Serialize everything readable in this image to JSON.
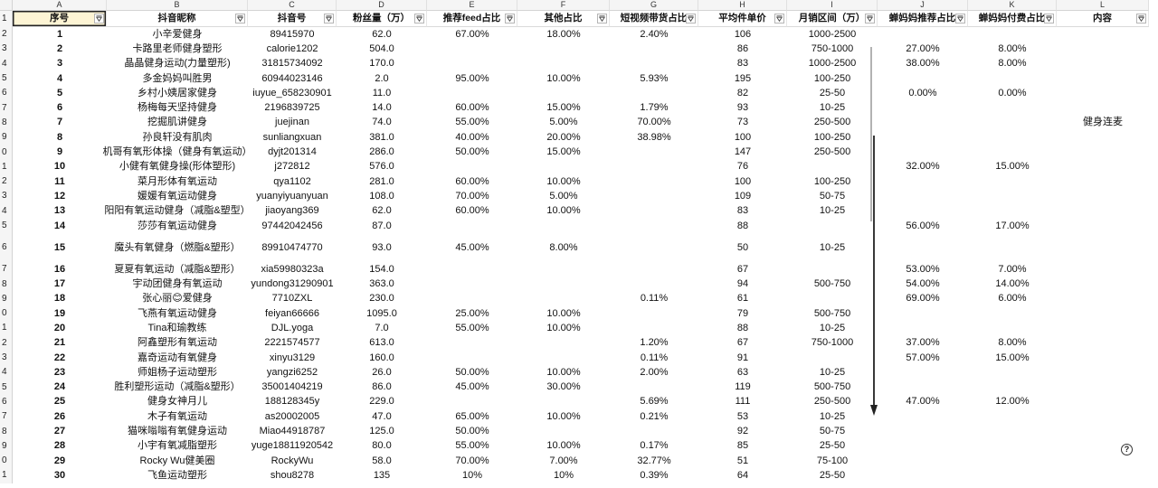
{
  "sheet": {
    "column_letters": [
      "A",
      "B",
      "C",
      "D",
      "E",
      "F",
      "G",
      "H",
      "I",
      "J",
      "K",
      "L"
    ],
    "row_numbers": [
      "1",
      "2",
      "3",
      "4",
      "5",
      "6",
      "7",
      "8",
      "9",
      "0",
      "1",
      "2",
      "3",
      "4",
      "5",
      "6",
      "7",
      "8",
      "9",
      "0",
      "1",
      "2",
      "3",
      "4",
      "5",
      "6",
      "7",
      "8",
      "9",
      "0",
      "1"
    ],
    "headers": [
      "序号",
      "抖音昵称",
      "抖音号",
      "粉丝量（万）",
      "推荐feed占比",
      "其他占比",
      "短视频带货占比",
      "平均件单价",
      "月销区间（万）",
      "蝉妈妈推荐占比",
      "蝉妈妈付费占比",
      "内容"
    ],
    "rows": [
      [
        "1",
        "小辛爱健身",
        "89415970",
        "62.0",
        "67.00%",
        "18.00%",
        "2.40%",
        "106",
        "1000-2500",
        "",
        "",
        ""
      ],
      [
        "2",
        "卡路里老师健身塑形",
        "calorie1202",
        "504.0",
        "",
        "",
        "",
        "86",
        "750-1000",
        "27.00%",
        "8.00%",
        ""
      ],
      [
        "3",
        "晶晶健身运动(力量塑形)",
        "31815734092",
        "170.0",
        "",
        "",
        "",
        "83",
        "1000-2500",
        "38.00%",
        "8.00%",
        ""
      ],
      [
        "4",
        "多金妈妈叫胜男",
        "60944023146",
        "2.0",
        "95.00%",
        "10.00%",
        "5.93%",
        "195",
        "100-250",
        "",
        "",
        ""
      ],
      [
        "5",
        "乡村小姨居家健身",
        "iuyue_658230901",
        "11.0",
        "",
        "",
        "",
        "82",
        "25-50",
        "0.00%",
        "0.00%",
        ""
      ],
      [
        "6",
        "杨梅每天坚持健身",
        "2196839725",
        "14.0",
        "60.00%",
        "15.00%",
        "1.79%",
        "93",
        "10-25",
        "",
        "",
        ""
      ],
      [
        "7",
        "挖掘肌讲健身",
        "juejinan",
        "74.0",
        "55.00%",
        "5.00%",
        "70.00%",
        "73",
        "250-500",
        "",
        "",
        "健身连麦"
      ],
      [
        "8",
        "孙良轩没有肌肉",
        "sunliangxuan",
        "381.0",
        "40.00%",
        "20.00%",
        "38.98%",
        "100",
        "100-250",
        "",
        "",
        ""
      ],
      [
        "9",
        "机哥有氧形体操（健身有氧运动）",
        "dyjt201314",
        "286.0",
        "50.00%",
        "15.00%",
        "",
        "147",
        "250-500",
        "",
        "",
        ""
      ],
      [
        "10",
        "小健有氧健身操(形体塑形)",
        "j272812",
        "576.0",
        "",
        "",
        "",
        "76",
        "",
        "32.00%",
        "15.00%",
        ""
      ],
      [
        "11",
        "菜月形体有氧运动",
        "qya1102",
        "281.0",
        "60.00%",
        "10.00%",
        "",
        "100",
        "100-250",
        "",
        "",
        ""
      ],
      [
        "12",
        "媛媛有氧运动健身",
        "yuanyiyuanyuan",
        "108.0",
        "70.00%",
        "5.00%",
        "",
        "109",
        "50-75",
        "",
        "",
        ""
      ],
      [
        "13",
        "阳阳有氧运动健身（减脂&塑型）",
        "jiaoyang369",
        "62.0",
        "60.00%",
        "10.00%",
        "",
        "83",
        "10-25",
        "",
        "",
        ""
      ],
      [
        "14",
        "莎莎有氧运动健身",
        "97442042456",
        "87.0",
        "",
        "",
        "",
        "88",
        "",
        "56.00%",
        "17.00%",
        ""
      ],
      [
        "15",
        "魔头有氧健身（燃脂&塑形）",
        "89910474770",
        "93.0",
        "45.00%",
        "8.00%",
        "",
        "50",
        "10-25",
        "",
        "",
        ""
      ],
      [
        "16",
        "夏夏有氧运动（减脂&塑形）",
        "xia59980323a",
        "154.0",
        "",
        "",
        "",
        "67",
        "",
        "53.00%",
        "7.00%",
        ""
      ],
      [
        "17",
        "宇动团健身有氧运动",
        "yundong31290901",
        "363.0",
        "",
        "",
        "",
        "94",
        "500-750",
        "54.00%",
        "14.00%",
        ""
      ],
      [
        "18",
        "张心丽😊爱健身",
        "7710ZXL",
        "230.0",
        "",
        "",
        "0.11%",
        "61",
        "",
        "69.00%",
        "6.00%",
        ""
      ],
      [
        "19",
        "飞燕有氧运动健身",
        "feiyan66666",
        "1095.0",
        "25.00%",
        "10.00%",
        "",
        "79",
        "500-750",
        "",
        "",
        ""
      ],
      [
        "20",
        "Tina和瑜教练",
        "DJL.yoga",
        "7.0",
        "55.00%",
        "10.00%",
        "",
        "88",
        "10-25",
        "",
        "",
        ""
      ],
      [
        "21",
        "阿鑫塑形有氧运动",
        "2221574577",
        "613.0",
        "",
        "",
        "1.20%",
        "67",
        "750-1000",
        "37.00%",
        "8.00%",
        ""
      ],
      [
        "22",
        "嘉奇运动有氧健身",
        "xinyu3129",
        "160.0",
        "",
        "",
        "0.11%",
        "91",
        "",
        "57.00%",
        "15.00%",
        ""
      ],
      [
        "23",
        "师姐杨子运动塑形",
        "yangzi6252",
        "26.0",
        "50.00%",
        "10.00%",
        "2.00%",
        "63",
        "10-25",
        "",
        "",
        ""
      ],
      [
        "24",
        "胜利塑形运动（减脂&塑形）",
        "35001404219",
        "86.0",
        "45.00%",
        "30.00%",
        "",
        "119",
        "500-750",
        "",
        "",
        ""
      ],
      [
        "25",
        "健身女神月儿",
        "188128345y",
        "229.0",
        "",
        "",
        "5.69%",
        "111",
        "250-500",
        "47.00%",
        "12.00%",
        ""
      ],
      [
        "26",
        "木子有氧运动",
        "as20002005",
        "47.0",
        "65.00%",
        "10.00%",
        "0.21%",
        "53",
        "10-25",
        "",
        "",
        ""
      ],
      [
        "27",
        "猫咪嗡嗡有氧健身运动",
        "Miao44918787",
        "125.0",
        "50.00%",
        "",
        "",
        "92",
        "50-75",
        "",
        "",
        ""
      ],
      [
        "28",
        "小宇有氧减脂塑形",
        "yuge18811920542",
        "80.0",
        "55.00%",
        "10.00%",
        "0.17%",
        "85",
        "25-50",
        "",
        "",
        ""
      ],
      [
        "29",
        "Rocky Wu健美圈",
        "RockyWu",
        "58.0",
        "70.00%",
        "7.00%",
        "32.77%",
        "51",
        "75-100",
        "",
        "",
        ""
      ],
      [
        "30",
        "飞鱼运动塑形",
        "shou8278",
        "135",
        "10%",
        "10%",
        "0.39%",
        "64",
        "25-50",
        "",
        "",
        ""
      ]
    ]
  },
  "help": {
    "label": "?"
  },
  "icons": {
    "filter_button": "filter-icon",
    "help": "help-icon",
    "annotation": "down-arrow-icon"
  },
  "colors": {
    "selected_cell_fill": "#fdf4d4",
    "selected_cell_border": "#222222",
    "arrow": "#222222"
  }
}
